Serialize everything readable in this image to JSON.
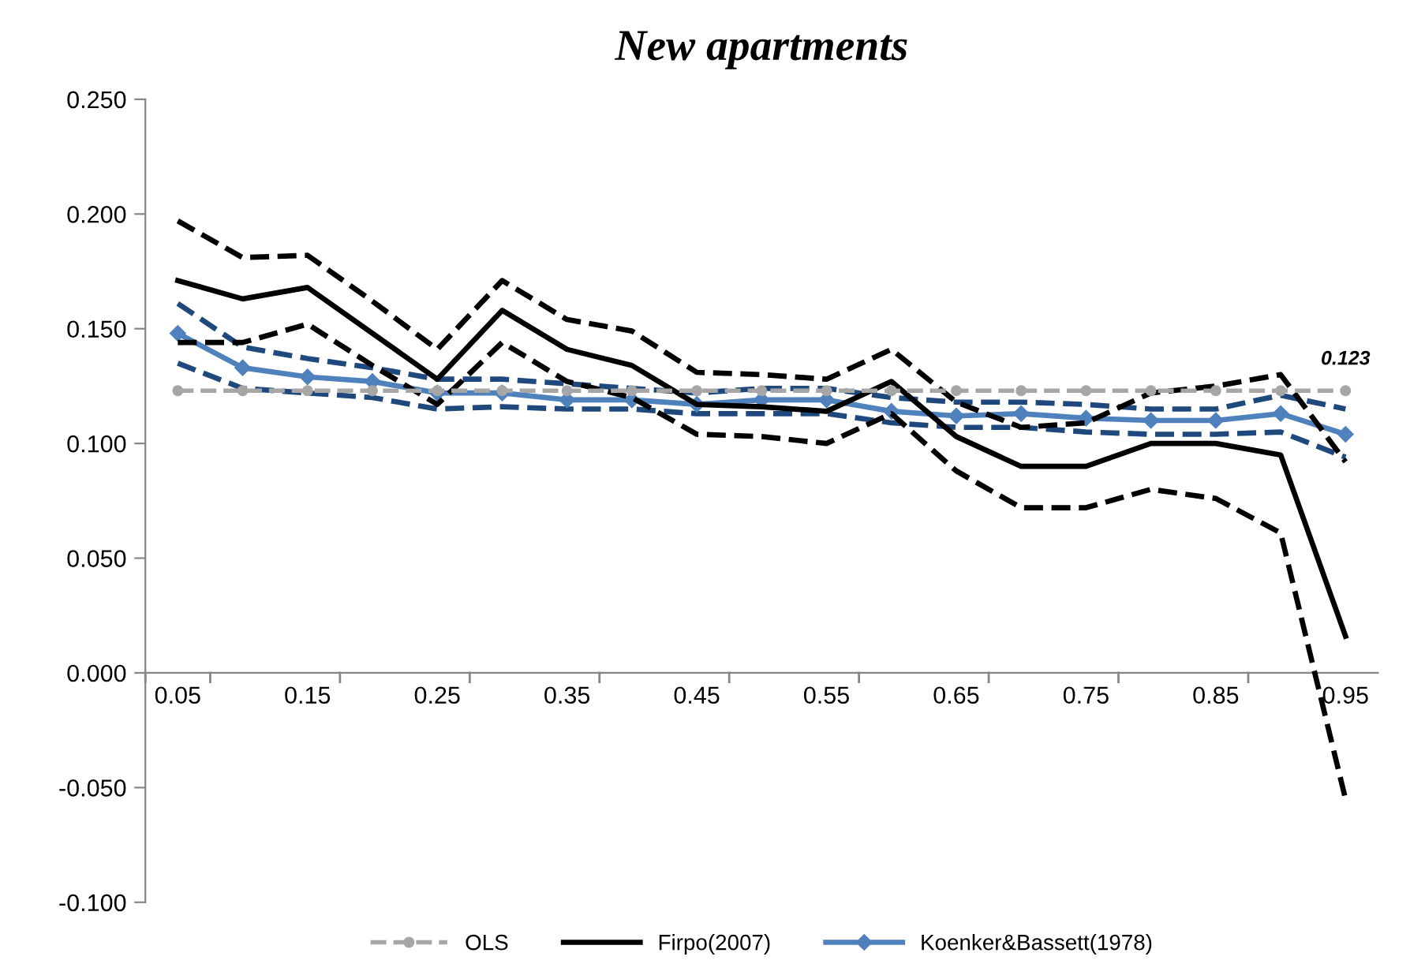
{
  "chart_data": {
    "type": "line",
    "title": "New apartments",
    "categories": [
      "0.05",
      null,
      "0.15",
      null,
      "0.25",
      null,
      "0.35",
      null,
      "0.45",
      null,
      "0.55",
      null,
      "0.65",
      null,
      "0.75",
      null,
      "0.85",
      null,
      "0.95"
    ],
    "ylim": [
      -0.1,
      0.25
    ],
    "yticks": [
      {
        "value": -0.1,
        "label": "-0.100"
      },
      {
        "value": -0.05,
        "label": "-0.050"
      },
      {
        "value": 0,
        "label": "0.000"
      },
      {
        "value": 0.05,
        "label": "0.050"
      },
      {
        "value": 0.1,
        "label": "0.100"
      },
      {
        "value": 0.15,
        "label": "0.150"
      },
      {
        "value": 0.2,
        "label": "0.200"
      },
      {
        "value": 0.25,
        "label": "0.250"
      }
    ],
    "grid": false,
    "legend": "bottom",
    "annotations": [
      {
        "text": "0.123",
        "x": "0.95",
        "y": 0.123
      }
    ],
    "series": [
      {
        "name": "OLS",
        "color": "#a6a6a6",
        "line_style": "dashed",
        "marker": "circle",
        "values": [
          0.123,
          0.123,
          0.123,
          0.123,
          0.123,
          0.123,
          0.123,
          0.123,
          0.123,
          0.123,
          0.123,
          0.123,
          0.123,
          0.123,
          0.123,
          0.123,
          0.123,
          0.123,
          0.123
        ]
      },
      {
        "name": "Firpo(2007)",
        "color": "#000000",
        "line_style": "solid",
        "marker": "none",
        "values": [
          0.171,
          0.163,
          0.168,
          0.148,
          0.128,
          0.158,
          0.141,
          0.134,
          0.117,
          0.116,
          0.114,
          0.127,
          0.103,
          0.09,
          0.09,
          0.1,
          0.1,
          0.095,
          0.016
        ]
      },
      {
        "color": "#000000",
        "line_style": "dashed",
        "marker": "none",
        "values": [
          0.197,
          0.181,
          0.182,
          0.162,
          0.141,
          0.171,
          0.154,
          0.149,
          0.131,
          0.13,
          0.128,
          0.141,
          0.118,
          0.107,
          0.109,
          0.122,
          0.125,
          0.13,
          0.092
        ]
      },
      {
        "color": "#000000",
        "line_style": "dashed",
        "marker": "none",
        "values": [
          0.144,
          0.144,
          0.152,
          0.134,
          0.117,
          0.144,
          0.127,
          0.12,
          0.104,
          0.103,
          0.1,
          0.113,
          0.088,
          0.072,
          0.072,
          0.08,
          0.076,
          0.061,
          -0.055
        ]
      },
      {
        "name": "Koenker&Bassett(1978)",
        "color": "#4f81bd",
        "line_style": "solid",
        "marker": "diamond",
        "values": [
          0.148,
          0.133,
          0.129,
          0.127,
          0.122,
          0.122,
          0.119,
          0.119,
          0.117,
          0.119,
          0.119,
          0.114,
          0.112,
          0.113,
          0.111,
          0.11,
          0.11,
          0.113,
          0.104
        ]
      },
      {
        "color": "#1f497d",
        "line_style": "dashed",
        "marker": "none",
        "values": [
          0.161,
          0.142,
          0.137,
          0.133,
          0.128,
          0.128,
          0.126,
          0.124,
          0.122,
          0.124,
          0.124,
          0.12,
          0.118,
          0.118,
          0.117,
          0.115,
          0.115,
          0.121,
          0.115
        ]
      },
      {
        "color": "#1f497d",
        "line_style": "dashed",
        "marker": "none",
        "values": [
          0.135,
          0.124,
          0.122,
          0.12,
          0.115,
          0.116,
          0.115,
          0.115,
          0.113,
          0.113,
          0.113,
          0.109,
          0.107,
          0.107,
          0.105,
          0.104,
          0.104,
          0.105,
          0.094
        ]
      }
    ]
  }
}
